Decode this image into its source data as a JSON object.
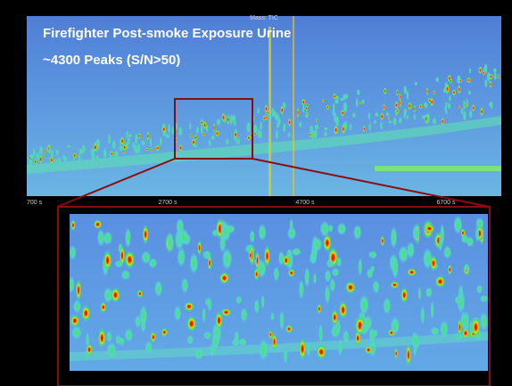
{
  "figure": {
    "title": "Firefighter Post-smoke Exposure Urine",
    "subtitle": "~4300 Peaks (S/N>50)",
    "top_panel": {
      "header": "Mass: TIC",
      "x_ticks": [
        "700 s",
        "2700 s",
        "4700 s",
        "6700 s"
      ]
    }
  }
}
